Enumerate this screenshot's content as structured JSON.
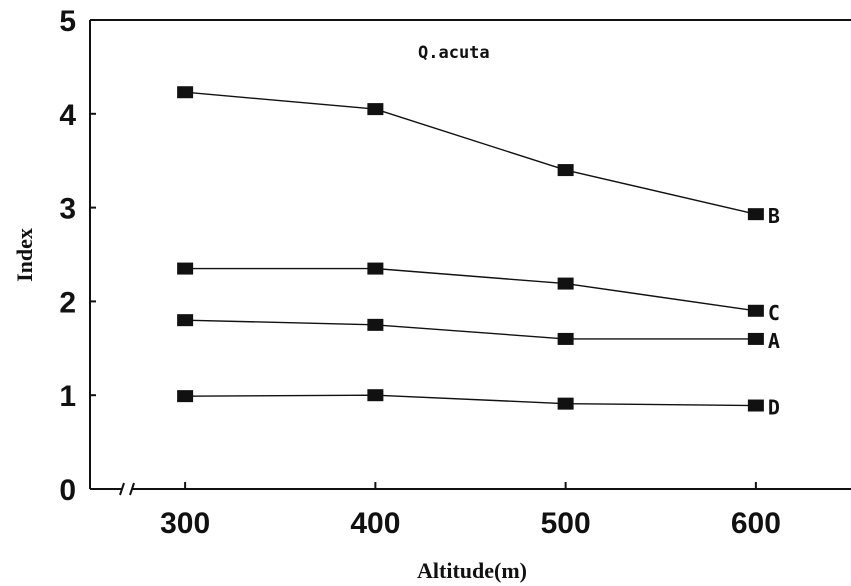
{
  "chart_data": {
    "type": "line",
    "title": "",
    "annotation": "Q.acuta",
    "xlabel": "Altitude(m)",
    "ylabel": "Index",
    "x": [
      300,
      400,
      500,
      600
    ],
    "x_tick_labels": [
      "300",
      "400",
      "500",
      "600"
    ],
    "y_tick_labels": [
      "0",
      "1",
      "2",
      "3",
      "4",
      "5"
    ],
    "xlim": [
      250,
      650
    ],
    "ylim": [
      0,
      5
    ],
    "axis_break": true,
    "grid": false,
    "series": [
      {
        "name": "B",
        "values": [
          4.23,
          4.05,
          3.4,
          2.93
        ]
      },
      {
        "name": "C",
        "values": [
          2.35,
          2.35,
          2.19,
          1.9
        ]
      },
      {
        "name": "A",
        "values": [
          1.8,
          1.75,
          1.6,
          1.6
        ]
      },
      {
        "name": "D",
        "values": [
          0.99,
          1.0,
          0.91,
          0.89
        ]
      }
    ],
    "marker": "square",
    "colors": {
      "line": "#111111",
      "marker": "#111111"
    }
  }
}
